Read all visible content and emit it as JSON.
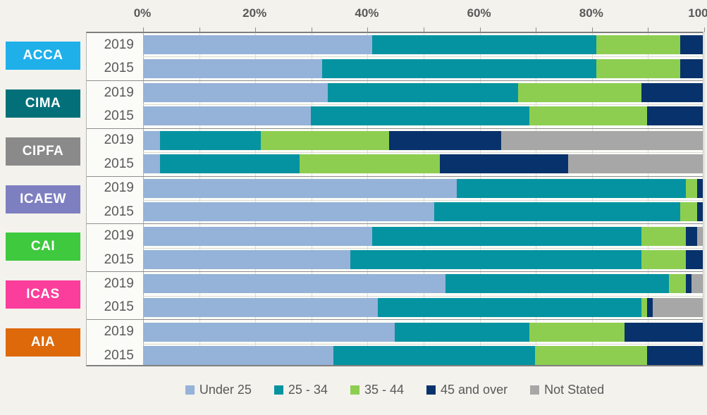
{
  "axis": {
    "tick_labels": [
      "0%",
      "20%",
      "40%",
      "60%",
      "80%",
      "100%"
    ],
    "minor_tick_step_pct": 10,
    "min": 0,
    "max": 100
  },
  "chart_data": {
    "type": "bar",
    "stacked": true,
    "orientation": "horizontal",
    "xlim": [
      0,
      100
    ],
    "grid": "vertical-10pct",
    "legend_position": "bottom",
    "series_legend": [
      {
        "label": "Under 25",
        "color": "#95B2D8"
      },
      {
        "label": "25 - 34",
        "color": "#0593A1"
      },
      {
        "label": "35 - 44",
        "color": "#8DCE51"
      },
      {
        "label": "45 and over",
        "color": "#08326B"
      },
      {
        "label": "Not Stated",
        "color": "#A7A7A7"
      }
    ],
    "groups": [
      {
        "body": "ACCA",
        "badge_color": "#1FB0EA",
        "rows": [
          {
            "year": "2019",
            "values": [
              41,
              40,
              15,
              4,
              0
            ]
          },
          {
            "year": "2015",
            "values": [
              32,
              49,
              15,
              4,
              0
            ]
          }
        ]
      },
      {
        "body": "CIMA",
        "badge_color": "#037079",
        "rows": [
          {
            "year": "2019",
            "values": [
              33,
              34,
              22,
              11,
              0
            ]
          },
          {
            "year": "2015",
            "values": [
              30,
              39,
              21,
              10,
              0
            ]
          }
        ]
      },
      {
        "body": "CIPFA",
        "badge_color": "#8A8A8A",
        "rows": [
          {
            "year": "2019",
            "values": [
              3,
              18,
              23,
              20,
              36
            ]
          },
          {
            "year": "2015",
            "values": [
              3,
              25,
              25,
              23,
              24
            ]
          }
        ]
      },
      {
        "body": "ICAEW",
        "badge_color": "#7E7FC1",
        "rows": [
          {
            "year": "2019",
            "values": [
              56,
              41,
              2,
              1,
              0
            ]
          },
          {
            "year": "2015",
            "values": [
              52,
              44,
              3,
              1,
              0
            ]
          }
        ]
      },
      {
        "body": "CAI",
        "badge_color": "#3EC93E",
        "rows": [
          {
            "year": "2019",
            "values": [
              41,
              48,
              8,
              2,
              1
            ]
          },
          {
            "year": "2015",
            "values": [
              37,
              52,
              8,
              3,
              0
            ]
          }
        ]
      },
      {
        "body": "ICAS",
        "badge_color": "#FB3D9B",
        "rows": [
          {
            "year": "2019",
            "values": [
              54,
              40,
              3,
              1,
              2
            ]
          },
          {
            "year": "2015",
            "values": [
              42,
              47,
              1,
              1,
              9
            ]
          }
        ]
      },
      {
        "body": "AIA",
        "badge_color": "#DE690B",
        "rows": [
          {
            "year": "2019",
            "values": [
              45,
              24,
              17,
              14,
              0
            ]
          },
          {
            "year": "2015",
            "values": [
              34,
              36,
              20,
              10,
              0
            ]
          }
        ]
      }
    ]
  }
}
